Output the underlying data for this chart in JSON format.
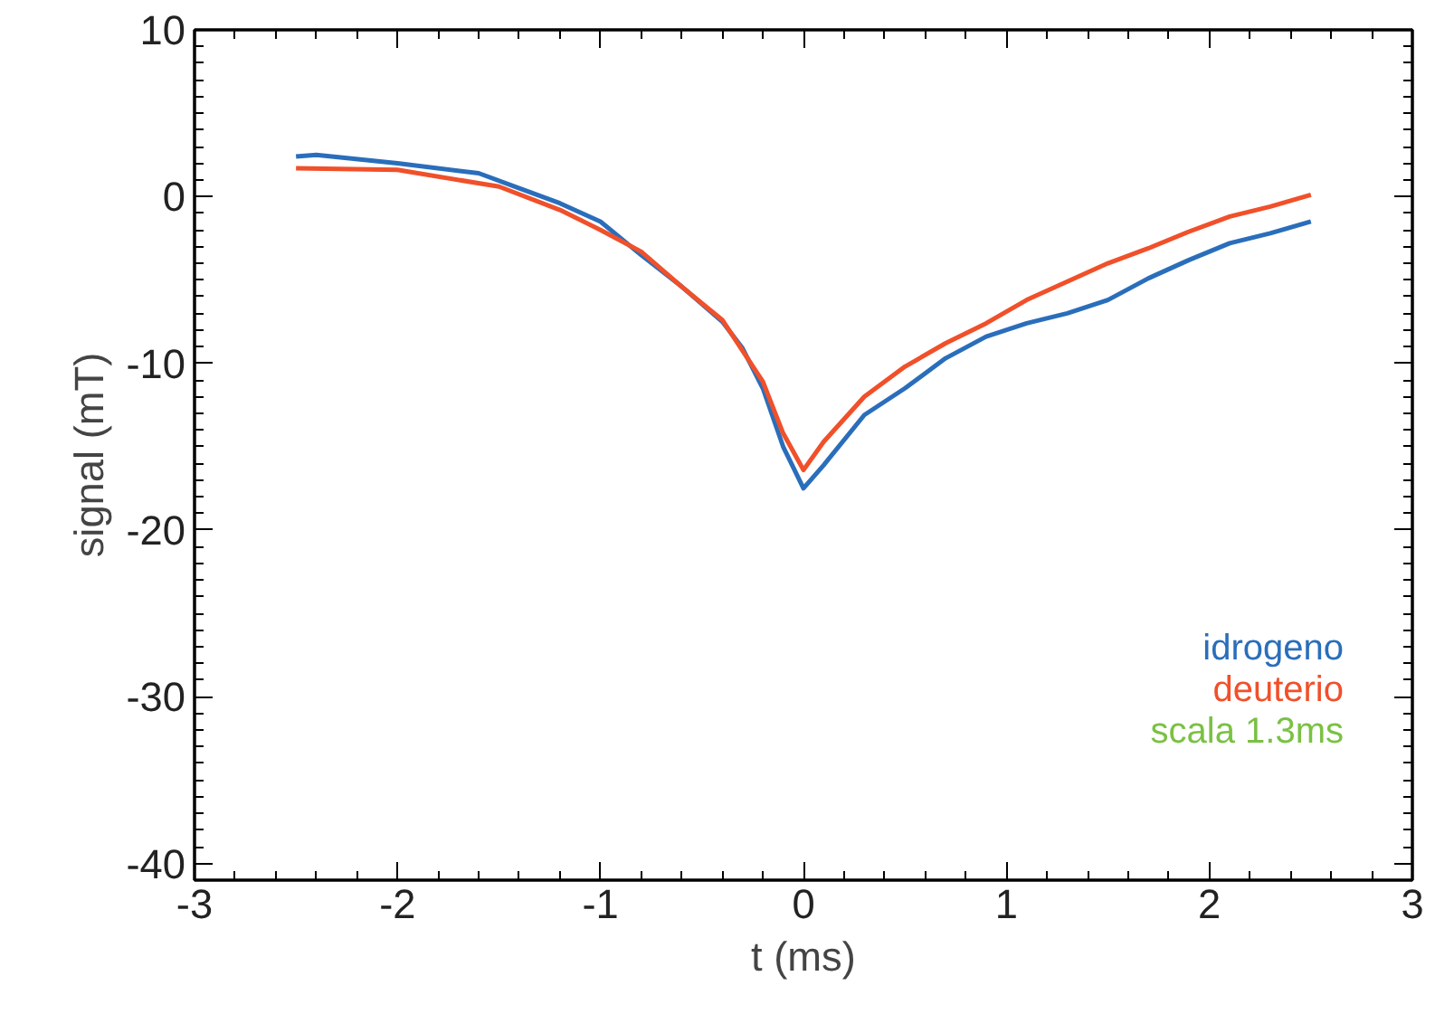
{
  "chart_data": {
    "type": "line",
    "xlabel": "t (ms)",
    "ylabel": "signal (mT)",
    "xlim": [
      -3,
      3
    ],
    "ylim": [
      -41,
      10
    ],
    "xticks": [
      -3,
      -2,
      -1,
      0,
      1,
      2,
      3
    ],
    "yticks": [
      -40,
      -30,
      -20,
      -10,
      0,
      10
    ],
    "series": [
      {
        "name": "idrogeno",
        "color": "#2a6ebb",
        "x": [
          -2.5,
          -2.4,
          -2.0,
          -1.6,
          -1.4,
          -1.2,
          -1.0,
          -0.8,
          -0.6,
          -0.4,
          -0.3,
          -0.2,
          -0.1,
          0,
          0.1,
          0.3,
          0.5,
          0.7,
          0.9,
          1.1,
          1.3,
          1.5,
          1.7,
          1.9,
          2.1,
          2.3,
          2.5
        ],
        "values": [
          2.4,
          2.5,
          2.0,
          1.4,
          0.5,
          -0.4,
          -1.5,
          -3.5,
          -5.4,
          -7.5,
          -9.1,
          -11.5,
          -15.0,
          -17.5,
          -16.1,
          -13.1,
          -11.5,
          -9.7,
          -8.4,
          -7.6,
          -7.0,
          -6.2,
          -4.9,
          -3.8,
          -2.8,
          -2.2,
          -1.5
        ]
      },
      {
        "name": "deuterio",
        "color": "#f0502a",
        "x": [
          -2.5,
          -2.0,
          -1.5,
          -1.2,
          -1.0,
          -0.8,
          -0.6,
          -0.4,
          -0.2,
          -0.1,
          0,
          0.1,
          0.3,
          0.5,
          0.7,
          0.9,
          1.1,
          1.3,
          1.5,
          1.7,
          1.9,
          2.1,
          2.3,
          2.5
        ],
        "values": [
          1.7,
          1.6,
          0.6,
          -0.8,
          -2.0,
          -3.3,
          -5.4,
          -7.4,
          -11.1,
          -14.2,
          -16.4,
          -14.7,
          -12.0,
          -10.2,
          -8.8,
          -7.6,
          -6.2,
          -5.1,
          -4.0,
          -3.1,
          -2.1,
          -1.2,
          -0.6,
          0.1
        ]
      }
    ],
    "annotations": [
      "scala 1.3ms"
    ],
    "legend": "bottom right",
    "grid": false
  }
}
